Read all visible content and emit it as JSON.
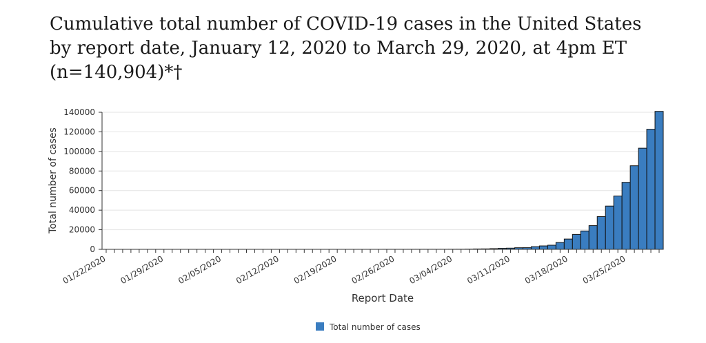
{
  "chart_data": {
    "type": "bar",
    "title": "Cumulative total number of COVID-19 cases in the United States by report date, January 12, 2020 to March 29, 2020, at 4pm ET (n=140,904)*†",
    "xlabel": "Report Date",
    "ylabel": "Total number of cases",
    "categories": [
      "01/22/2020",
      null,
      null,
      null,
      null,
      null,
      null,
      "01/29/2020",
      null,
      null,
      null,
      null,
      null,
      null,
      "02/05/2020",
      null,
      null,
      null,
      null,
      null,
      null,
      "02/12/2020",
      null,
      null,
      null,
      null,
      null,
      null,
      "02/19/2020",
      null,
      null,
      null,
      null,
      null,
      null,
      "02/26/2020",
      null,
      null,
      null,
      null,
      null,
      null,
      "03/04/2020",
      null,
      null,
      null,
      null,
      null,
      null,
      "03/11/2020",
      null,
      null,
      null,
      null,
      null,
      null,
      "03/18/2020",
      null,
      null,
      null,
      null,
      null,
      null,
      "03/25/2020",
      null,
      null,
      null,
      null
    ],
    "series": [
      {
        "name": "Total number of cases",
        "color": "#3a7dc0",
        "values": [
          1,
          1,
          2,
          2,
          5,
          5,
          5,
          5,
          5,
          6,
          7,
          8,
          11,
          11,
          11,
          12,
          12,
          12,
          12,
          12,
          13,
          14,
          14,
          14,
          14,
          14,
          14,
          14,
          14,
          15,
          15,
          15,
          15,
          15,
          35,
          35,
          35,
          53,
          57,
          60,
          60,
          74,
          98,
          118,
          213,
          402,
          472,
          696,
          1004,
          1215,
          1629,
          1678,
          2726,
          3487,
          4226,
          7038,
          10491,
          15219,
          18747,
          24207,
          33404,
          44183,
          54453,
          68440,
          85356,
          103321,
          122653,
          140904
        ]
      }
    ],
    "ylim": [
      0,
      140000
    ],
    "yticks": [
      0,
      20000,
      40000,
      60000,
      80000,
      100000,
      120000,
      140000
    ],
    "grid": true,
    "legend": "bottom"
  }
}
